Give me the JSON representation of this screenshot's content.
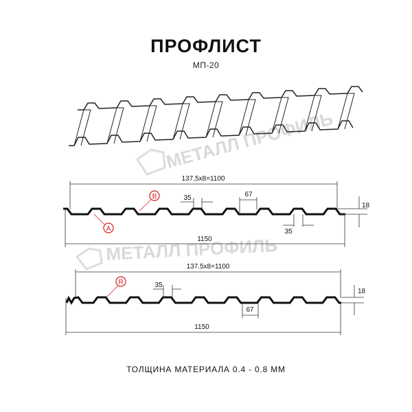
{
  "title": "ПРОФЛИСТ",
  "subtitle": "МП-20",
  "watermark": "МЕТАЛЛ ПРОФИЛЬ",
  "drawing1": {
    "pitch_label": "137,5x8=1100",
    "total_label": "1150",
    "top_width_label": "35",
    "valley_width_label": "67",
    "bottom_width_label": "35",
    "height_label": "18",
    "marker_a": "A",
    "marker_b": "B"
  },
  "drawing2": {
    "pitch_label": "137.5x8=1100",
    "total_label": "1150",
    "top_width_label": "35",
    "valley_width_label": "67",
    "height_label": "18",
    "marker_r": "R"
  },
  "footer": "ТОЛЩИНА МАТЕРИАЛА 0.4 - 0.8 ММ",
  "colors": {
    "profile": "#111111",
    "marker": "#d42020",
    "watermark": "#d9d9d9"
  }
}
